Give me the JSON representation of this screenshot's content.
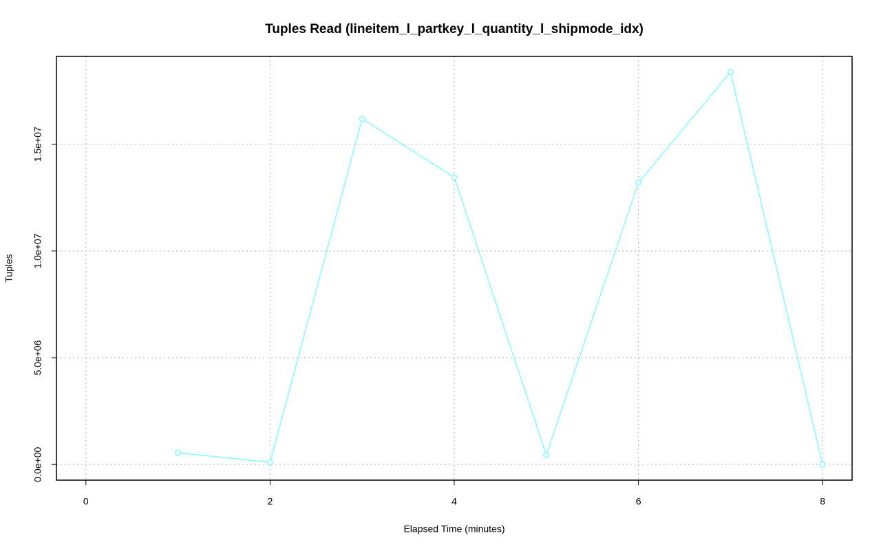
{
  "chart_data": {
    "type": "line",
    "title": "Tuples Read (lineitem_l_partkey_l_quantity_l_shipmode_idx)",
    "x_label": "Elapsed Time (minutes)",
    "y_label": "Tuples",
    "x": [
      1,
      2,
      3,
      4,
      5,
      6,
      7,
      8
    ],
    "series": [
      {
        "name": "Tuples",
        "color": "#7ffcff",
        "values": [
          550000,
          100000,
          16190000,
          13450000,
          450000,
          13200000,
          18380000,
          0
        ]
      }
    ],
    "xlim": [
      -0.32,
      8.32
    ],
    "xticks": [
      0,
      2,
      4,
      6,
      8
    ],
    "ylim": [
      -735000,
      19115000
    ],
    "yticks": [
      {
        "value": 0,
        "label": "0.0e+00"
      },
      {
        "value": 5000000,
        "label": "5.0e+06"
      },
      {
        "value": 10000000,
        "label": "1.0e+07"
      },
      {
        "value": 15000000,
        "label": "1.5e+07"
      }
    ],
    "grid": true,
    "markers": "open-circle"
  }
}
